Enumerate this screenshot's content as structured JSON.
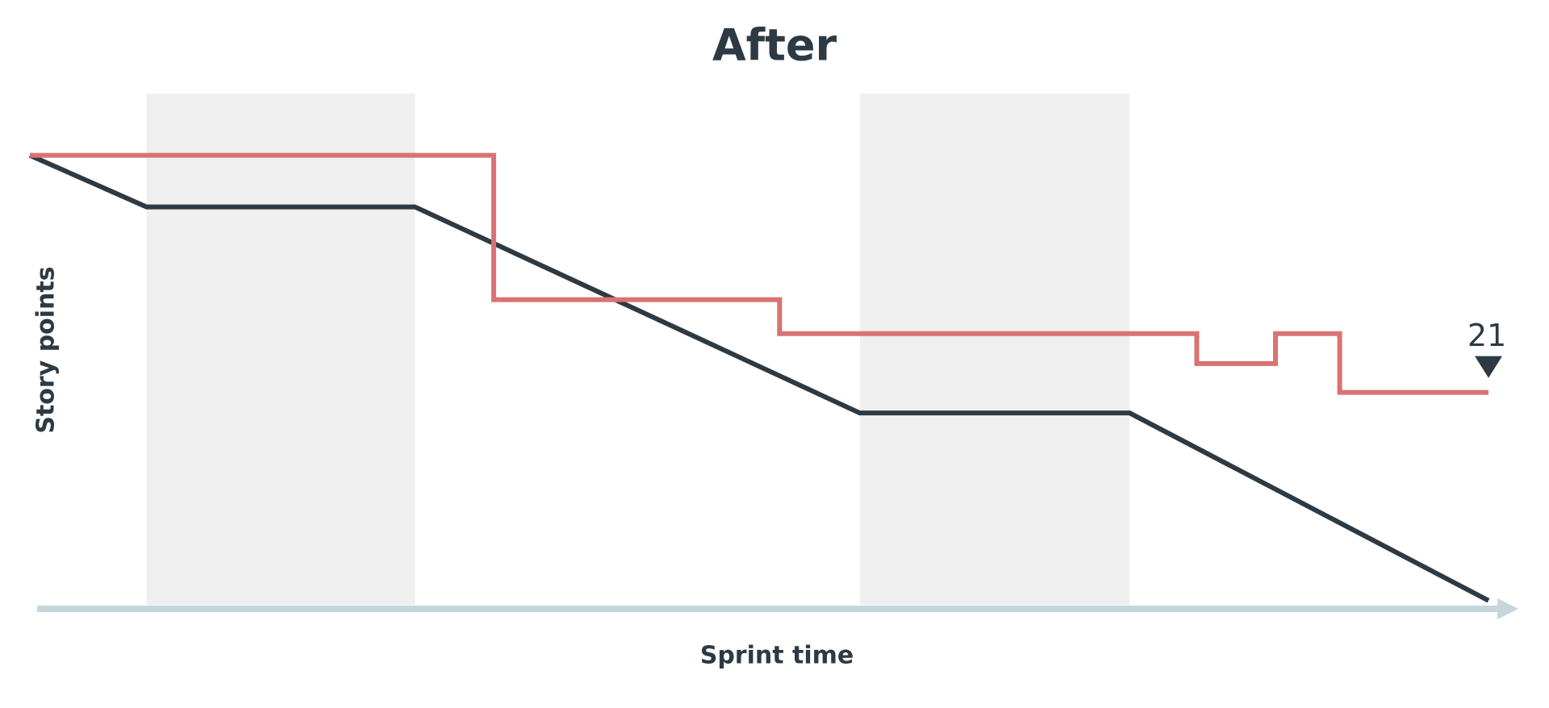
{
  "chart_data": {
    "type": "line",
    "title": "After",
    "x_label": "Sprint time",
    "y_label": "Story points",
    "xlim": [
      0,
      100
    ],
    "ylim": [
      0,
      50
    ],
    "shaded_ranges": [
      [
        8,
        26.4
      ],
      [
        56.9,
        75.4
      ]
    ],
    "shade_color": "#efefef",
    "axis_color": "#c5d6dd",
    "series": [
      {
        "name": null,
        "color": "#2d3a43",
        "x": [
          0,
          8,
          26.4,
          56.9,
          75.4,
          100
        ],
        "values": [
          44,
          39,
          39,
          19,
          19,
          0.8
        ]
      },
      {
        "name": null,
        "color": "#d97373",
        "x": [
          0,
          31.8,
          31.8,
          51.4,
          51.4,
          80,
          80,
          85.4,
          85.4,
          89.8,
          89.8,
          100
        ],
        "values": [
          44,
          44,
          30,
          30,
          26.7,
          26.7,
          23.8,
          23.8,
          26.7,
          26.7,
          21,
          21
        ]
      }
    ]
  }
}
